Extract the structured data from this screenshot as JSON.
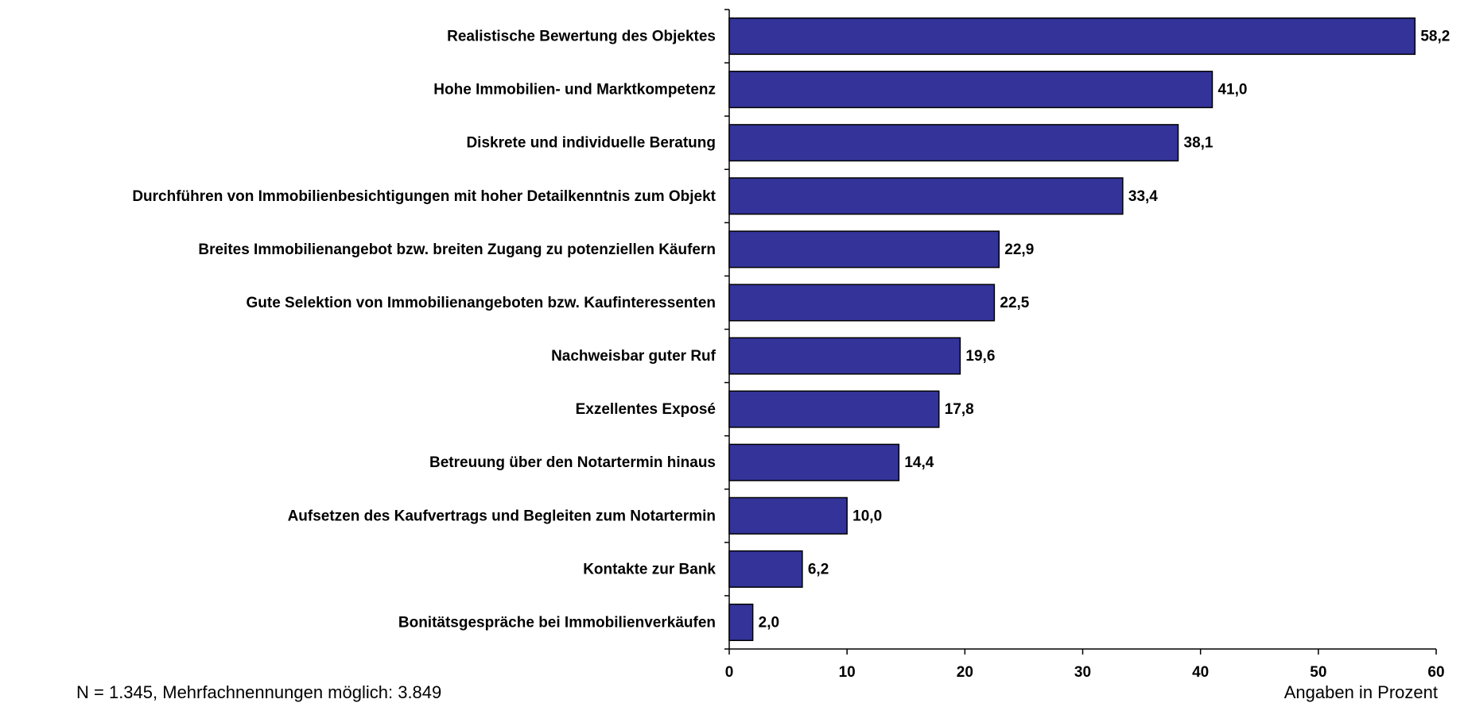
{
  "chart_data": {
    "type": "bar",
    "orientation": "horizontal",
    "categories": [
      "Realistische Bewertung des Objektes",
      "Hohe Immobilien- und Marktkompetenz",
      "Diskrete und individuelle Beratung",
      "Durchführen von Immobilienbesichtigungen mit hoher Detailkenntnis zum Objekt",
      "Breites Immobilienangebot bzw. breiten Zugang zu potenziellen Käufern",
      "Gute Selektion von Immobilienangeboten bzw. Kaufinteressenten",
      "Nachweisbar guter Ruf",
      "Exzellentes Exposé",
      "Betreuung über den Notartermin hinaus",
      "Aufsetzen des Kaufvertrags und Begleiten zum Notartermin",
      "Kontakte zur Bank",
      "Bonitätsgespräche bei Immobilienverkäufen"
    ],
    "values": [
      58.2,
      41.0,
      38.1,
      33.4,
      22.9,
      22.5,
      19.6,
      17.8,
      14.4,
      10.0,
      6.2,
      2.0
    ],
    "value_labels": [
      "58,2",
      "41,0",
      "38,1",
      "33,4",
      "22,9",
      "22,5",
      "19,6",
      "17,8",
      "14,4",
      "10,0",
      "6,2",
      "2,0"
    ],
    "color": "#333399",
    "xlim": [
      0,
      60
    ],
    "xticks": [
      0,
      10,
      20,
      30,
      40,
      50,
      60
    ],
    "xlabel": "Angaben in Prozent",
    "note": "N = 1.345, Mehrfachnennungen möglich: 3.849"
  }
}
